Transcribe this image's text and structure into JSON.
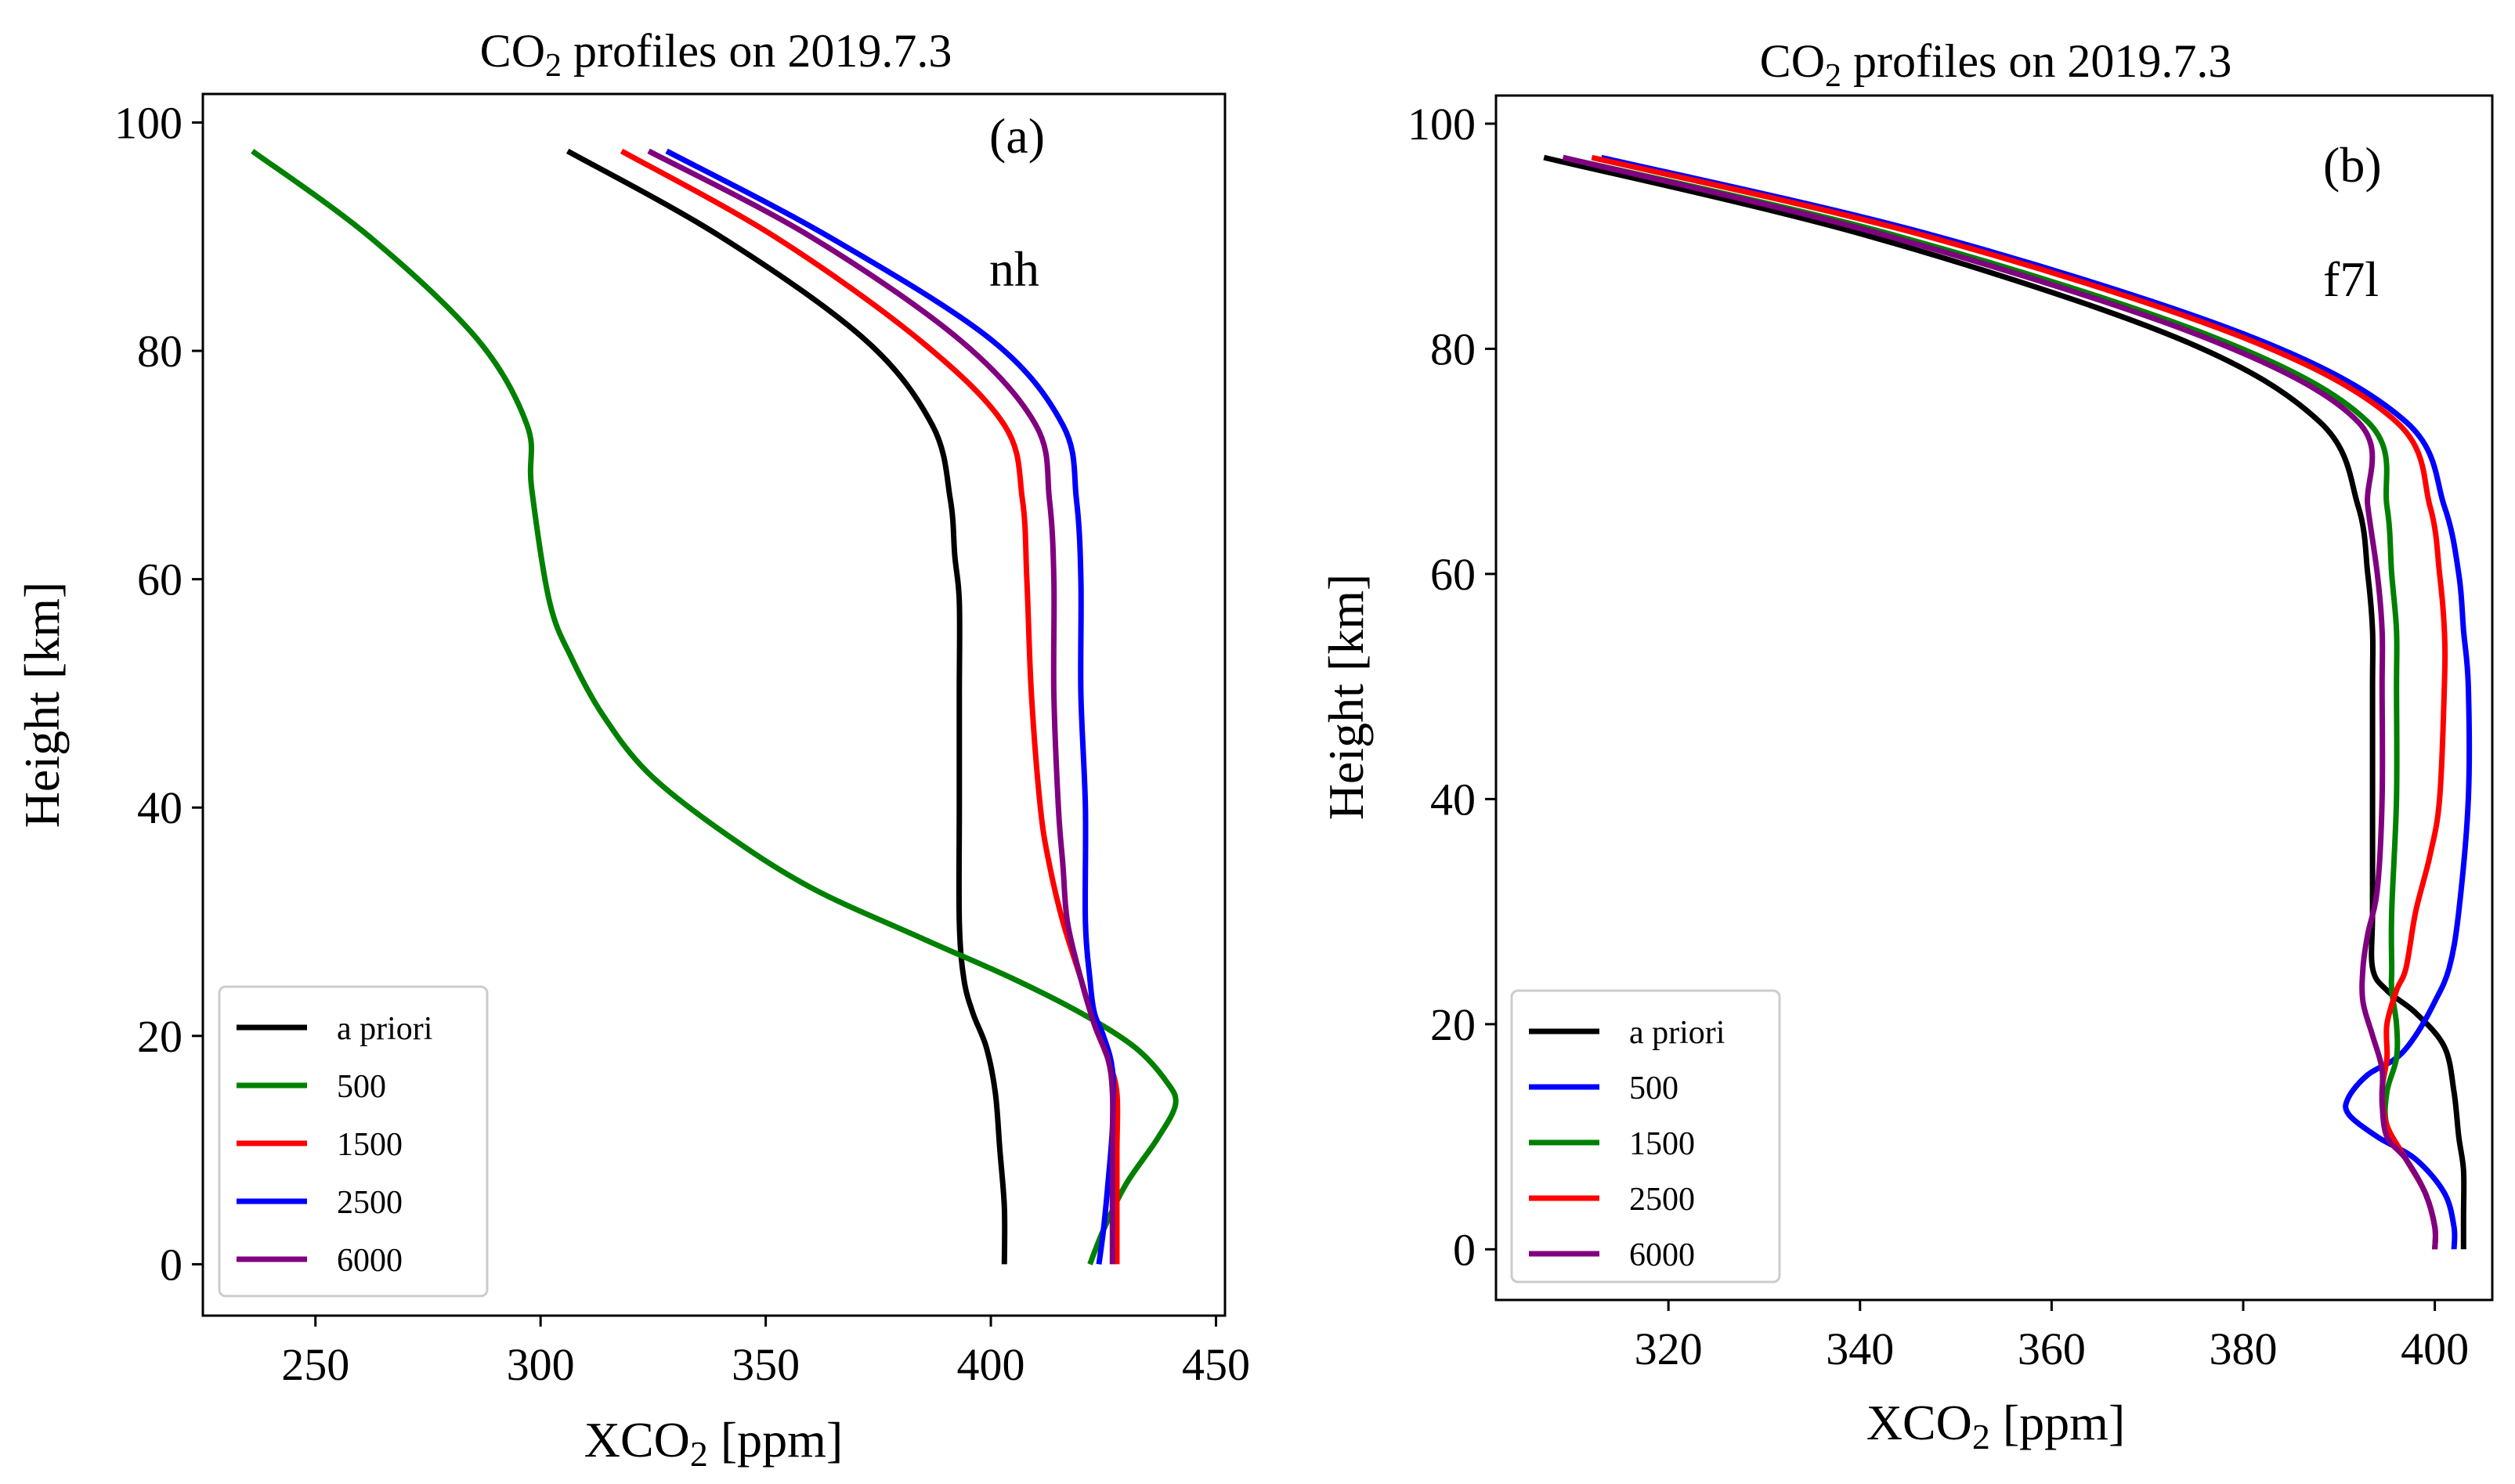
{
  "chart_data": [
    {
      "type": "line",
      "panel": "(a)",
      "title_prefix": "CO",
      "title_sub": "2",
      "title_suffix": " profiles on 2019.7.3",
      "xlabel_prefix": "XCO",
      "xlabel_sub": "2",
      "xlabel_suffix": " [ppm]",
      "ylabel": "Height [km]",
      "xlim": [
        225,
        452
      ],
      "ylim": [
        -4.5,
        102.5
      ],
      "xticks": [
        250,
        300,
        350,
        400,
        450
      ],
      "yticks": [
        0,
        20,
        40,
        60,
        80,
        100
      ],
      "annotations": {
        "panel_label": "(a)",
        "site": "nh"
      },
      "legend_position": "lower-left",
      "series": [
        {
          "name": "a priori",
          "color": "#000000",
          "points": [
            [
              403,
              0
            ],
            [
              403,
              5
            ],
            [
              402,
              10
            ],
            [
              401,
              15
            ],
            [
              399,
              19
            ],
            [
              396,
              22
            ],
            [
              394,
              25
            ],
            [
              393,
              30
            ],
            [
              393,
              40
            ],
            [
              393,
              50
            ],
            [
              393,
              58
            ],
            [
              392,
              62
            ],
            [
              391,
              67
            ],
            [
              387,
              73.5
            ],
            [
              372,
              81
            ],
            [
              340,
              90
            ],
            [
              306,
              97.5
            ]
          ]
        },
        {
          "name": "500",
          "color": "#008000",
          "points": [
            [
              422,
              0
            ],
            [
              425,
              3
            ],
            [
              430,
              7
            ],
            [
              437,
              11
            ],
            [
              441,
              14
            ],
            [
              439,
              16
            ],
            [
              432,
              19
            ],
            [
              420,
              22
            ],
            [
              405,
              25
            ],
            [
              385,
              28.5
            ],
            [
              360,
              33
            ],
            [
              340,
              38
            ],
            [
              324,
              43
            ],
            [
              314,
              48
            ],
            [
              307,
              53
            ],
            [
              302,
              58
            ],
            [
              298,
              68
            ],
            [
              297,
              73.5
            ],
            [
              286,
              81
            ],
            [
              262,
              90
            ],
            [
              236,
              97.5
            ]
          ]
        },
        {
          "name": "1500",
          "color": "#ff0000",
          "points": [
            [
              428,
              0
            ],
            [
              428,
              5
            ],
            [
              428,
              10
            ],
            [
              428,
              15
            ],
            [
              426,
              18
            ],
            [
              423,
              21
            ],
            [
              420,
              25
            ],
            [
              416,
              30
            ],
            [
              413,
              35
            ],
            [
              411,
              40
            ],
            [
              409,
              50
            ],
            [
              408,
              60
            ],
            [
              407,
              67
            ],
            [
              403,
              73.5
            ],
            [
              384,
              81
            ],
            [
              352,
              90
            ],
            [
              318,
              97.5
            ]
          ]
        },
        {
          "name": "2500",
          "color": "#0000ff",
          "points": [
            [
              424,
              0
            ],
            [
              425,
              3
            ],
            [
              426,
              7
            ],
            [
              427,
              12
            ],
            [
              427,
              17
            ],
            [
              425,
              20
            ],
            [
              423,
              22
            ],
            [
              422,
              25
            ],
            [
              421,
              30
            ],
            [
              421,
              40
            ],
            [
              420,
              50
            ],
            [
              420,
              60
            ],
            [
              419,
              67
            ],
            [
              416,
              73.5
            ],
            [
              400,
              81
            ],
            [
              364,
              90
            ],
            [
              328,
              97.5
            ]
          ]
        },
        {
          "name": "6000",
          "color": "#800080",
          "points": [
            [
              427,
              0
            ],
            [
              427,
              5
            ],
            [
              427,
              10
            ],
            [
              427,
              15
            ],
            [
              426,
              18
            ],
            [
              423,
              21
            ],
            [
              420,
              25
            ],
            [
              417,
              30
            ],
            [
              416,
              35
            ],
            [
              415,
              40
            ],
            [
              414,
              50
            ],
            [
              414,
              60
            ],
            [
              413,
              67
            ],
            [
              410,
              73.5
            ],
            [
              393,
              81
            ],
            [
              360,
              90
            ],
            [
              324,
              97.5
            ]
          ]
        }
      ]
    },
    {
      "type": "line",
      "panel": "(b)",
      "title_prefix": "CO",
      "title_sub": "2",
      "title_suffix": " profiles on 2019.7.3",
      "xlabel_prefix": "XCO",
      "xlabel_sub": "2",
      "xlabel_suffix": " [ppm]",
      "ylabel": "Height [km]",
      "xlim": [
        302,
        406
      ],
      "ylim": [
        -4.5,
        102.5
      ],
      "xticks": [
        320,
        340,
        360,
        380,
        400
      ],
      "yticks": [
        0,
        20,
        40,
        60,
        80,
        100
      ],
      "annotations": {
        "panel_label": "(b)",
        "site": "f7l"
      },
      "legend_position": "lower-left",
      "series": [
        {
          "name": "a priori",
          "color": "#000000",
          "points": [
            [
              403,
              0
            ],
            [
              403,
              3
            ],
            [
              403,
              7
            ],
            [
              402.5,
              10
            ],
            [
              402,
              14
            ],
            [
              401,
              18
            ],
            [
              398,
              21
            ],
            [
              395,
              23
            ],
            [
              393.5,
              25
            ],
            [
              393.5,
              30
            ],
            [
              393.5,
              40
            ],
            [
              393.5,
              50
            ],
            [
              393.5,
              55
            ],
            [
              393,
              60
            ],
            [
              392,
              66
            ],
            [
              388,
              73.5
            ],
            [
              373,
              81
            ],
            [
              341,
              90
            ],
            [
              307,
              97
            ]
          ]
        },
        {
          "name": "500",
          "color": "#0000ff",
          "points": [
            [
              402,
              0
            ],
            [
              402,
              2
            ],
            [
              401,
              5
            ],
            [
              398,
              8
            ],
            [
              394,
              10
            ],
            [
              391,
              12
            ],
            [
              391,
              13.5
            ],
            [
              393,
              15.5
            ],
            [
              396,
              17
            ],
            [
              398,
              19
            ],
            [
              400,
              22
            ],
            [
              401.5,
              25
            ],
            [
              402.5,
              30
            ],
            [
              403.5,
              40
            ],
            [
              403.5,
              50
            ],
            [
              403,
              55
            ],
            [
              402.5,
              60
            ],
            [
              401,
              66
            ],
            [
              397,
              73.5
            ],
            [
              381,
              81
            ],
            [
              348,
              90
            ],
            [
              313,
              97
            ]
          ]
        },
        {
          "name": "1500",
          "color": "#008000",
          "points": [
            [
              400,
              0
            ],
            [
              400,
              2
            ],
            [
              399,
              5
            ],
            [
              397,
              8
            ],
            [
              395,
              11
            ],
            [
              395,
              14
            ],
            [
              396,
              17
            ],
            [
              396,
              20
            ],
            [
              395.5,
              23
            ],
            [
              395.5,
              25
            ],
            [
              395.5,
              30
            ],
            [
              396,
              40
            ],
            [
              396,
              50
            ],
            [
              396,
              55
            ],
            [
              395.5,
              60
            ],
            [
              395,
              66
            ],
            [
              393,
              73.5
            ],
            [
              377,
              81
            ],
            [
              344,
              90
            ],
            [
              309,
              97
            ]
          ]
        },
        {
          "name": "2500",
          "color": "#ff0000",
          "points": [
            [
              400,
              0
            ],
            [
              400,
              2
            ],
            [
              399,
              5
            ],
            [
              397,
              8
            ],
            [
              395,
              11
            ],
            [
              394.5,
              14
            ],
            [
              395,
              17
            ],
            [
              395,
              20
            ],
            [
              396,
              23
            ],
            [
              397,
              25
            ],
            [
              398,
              30
            ],
            [
              399.5,
              35
            ],
            [
              400.5,
              40
            ],
            [
              401,
              50
            ],
            [
              401,
              55
            ],
            [
              400.5,
              60
            ],
            [
              399.5,
              66
            ],
            [
              396,
              73.5
            ],
            [
              380,
              81
            ],
            [
              347,
              90
            ],
            [
              312,
              97
            ]
          ]
        },
        {
          "name": "6000",
          "color": "#800080",
          "points": [
            [
              400,
              0
            ],
            [
              400,
              2
            ],
            [
              399,
              5
            ],
            [
              397,
              8
            ],
            [
              395,
              10
            ],
            [
              394.5,
              13
            ],
            [
              394.5,
              16
            ],
            [
              393.5,
              19
            ],
            [
              392.5,
              22
            ],
            [
              392.5,
              25
            ],
            [
              393,
              28
            ],
            [
              394,
              32
            ],
            [
              394.5,
              40
            ],
            [
              394.5,
              50
            ],
            [
              394.5,
              55
            ],
            [
              394,
              60
            ],
            [
              393,
              66
            ],
            [
              392,
              73.5
            ],
            [
              376,
              81
            ],
            [
              343,
              90
            ],
            [
              309,
              97
            ]
          ]
        }
      ]
    }
  ]
}
